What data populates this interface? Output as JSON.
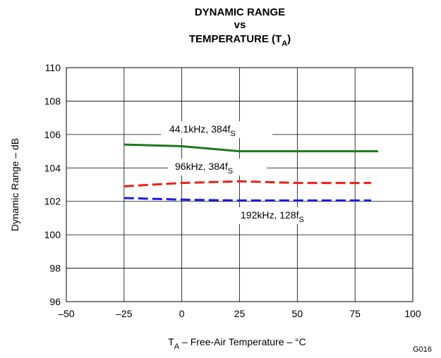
{
  "chart_data": {
    "type": "line",
    "title_lines": [
      "DYNAMIC RANGE",
      "vs",
      "TEMPERATURE (T",
      "A",
      ")"
    ],
    "xlabel": {
      "main": "T",
      "sub": "A",
      "rest": " – Free-Air Temperature – °C"
    },
    "ylabel": "Dynamic Range – dB",
    "xlim": [
      -50,
      100
    ],
    "ylim": [
      96,
      110
    ],
    "xticks": [
      -50,
      -25,
      0,
      25,
      50,
      75,
      100
    ],
    "xtick_labels": [
      "–50",
      "–25",
      "0",
      "25",
      "50",
      "75",
      "100"
    ],
    "yticks": [
      96,
      98,
      100,
      102,
      104,
      106,
      108,
      110
    ],
    "ytick_labels": [
      "96",
      "98",
      "100",
      "102",
      "104",
      "106",
      "108",
      "110"
    ],
    "grid": true,
    "series": [
      {
        "name": "44.1kHz, 384fS",
        "label_main": "44.1kHz, 384f",
        "label_sub": "S",
        "color": "#1a7a1a",
        "style": "solid",
        "x": [
          -25,
          0,
          25,
          50,
          85
        ],
        "y": [
          105.4,
          105.3,
          105.0,
          105.0,
          105.0
        ]
      },
      {
        "name": "96kHz, 384fS",
        "label_main": "96kHz, 384f",
        "label_sub": "S",
        "color": "#e8201a",
        "style": "dashed",
        "x": [
          -25,
          0,
          25,
          50,
          82
        ],
        "y": [
          102.9,
          103.1,
          103.2,
          103.1,
          103.1
        ]
      },
      {
        "name": "192kHz, 128fS",
        "label_main": "192kHz, 128f",
        "label_sub": "S",
        "color": "#1a1ae8",
        "style": "dashed",
        "x": [
          -25,
          0,
          25,
          50,
          82
        ],
        "y": [
          102.2,
          102.1,
          102.05,
          102.05,
          102.05
        ]
      }
    ],
    "figure_code": "G016"
  }
}
